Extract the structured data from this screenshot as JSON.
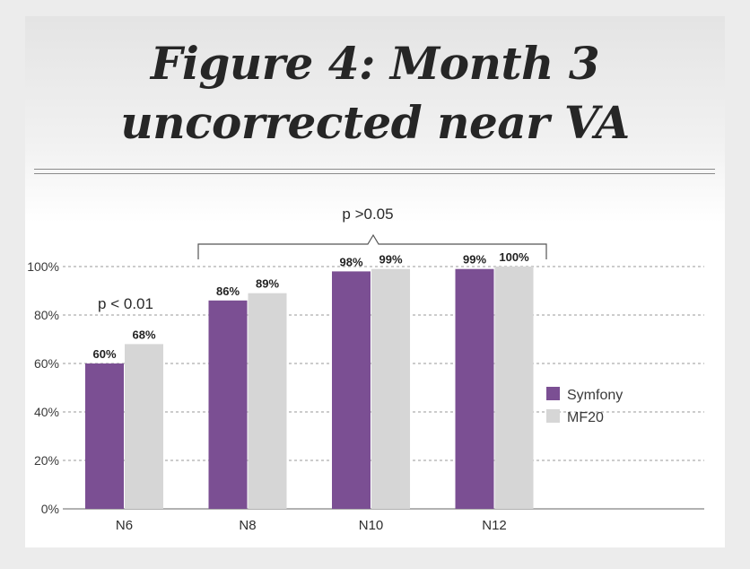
{
  "chart_data": {
    "type": "bar",
    "title_lines": [
      "Figure 4: Month 3",
      "uncorrected near VA"
    ],
    "categories": [
      "N6",
      "N8",
      "N10",
      "N12"
    ],
    "series": [
      {
        "name": "Symfony",
        "color": "#7b4f93",
        "values": [
          60,
          86,
          98,
          99
        ],
        "labels": [
          "60%",
          "86%",
          "98%",
          "99%"
        ]
      },
      {
        "name": "MF20",
        "color": "#d6d6d6",
        "values": [
          68,
          89,
          99,
          100
        ],
        "labels": [
          "68%",
          "89%",
          "99%",
          "100%"
        ]
      }
    ],
    "ylim": [
      0,
      100
    ],
    "yticks": [
      0,
      20,
      40,
      60,
      80,
      100
    ],
    "ytick_labels": [
      "0%",
      "20%",
      "40%",
      "60%",
      "80%",
      "100%"
    ],
    "grid": "dashed horizontal",
    "legend_position": "right",
    "annotations": {
      "n6": "p < 0.01",
      "bracket": "p >0.05"
    }
  }
}
